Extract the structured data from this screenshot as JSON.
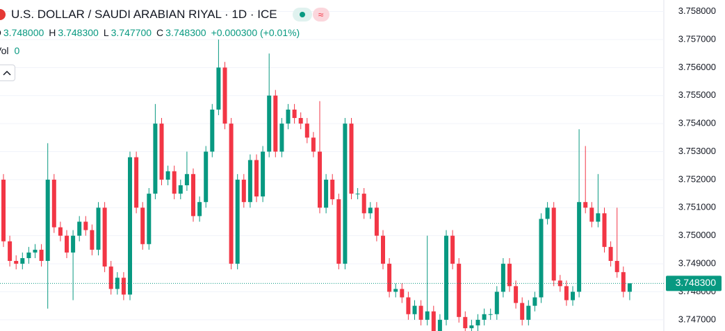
{
  "header": {
    "title": "U.S. DOLLAR / SAUDI ARABIAN RIYAL · 1D · ICE",
    "o_label": "O",
    "o_value": "3.748000",
    "h_label": "H",
    "h_value": "3.748300",
    "l_label": "L",
    "l_value": "3.747700",
    "c_label": "C",
    "c_value": "3.748300",
    "change": "+0.000300 (+0.01%)",
    "vol_label": "Vol",
    "vol_value": "0"
  },
  "chart_data": {
    "type": "candlestick",
    "up_color": "#089981",
    "down_color": "#f23645",
    "grid": true,
    "ylim": [
      3.7466,
      3.75841
    ],
    "yticks": [
      {
        "value": 3.758,
        "label": "3.758000"
      },
      {
        "value": 3.757,
        "label": "3.757000"
      },
      {
        "value": 3.756,
        "label": "3.756000"
      },
      {
        "value": 3.755,
        "label": "3.755000"
      },
      {
        "value": 3.754,
        "label": "3.754000"
      },
      {
        "value": 3.753,
        "label": "3.753000"
      },
      {
        "value": 3.752,
        "label": "3.752000"
      },
      {
        "value": 3.751,
        "label": "3.751000"
      },
      {
        "value": 3.75,
        "label": "3.750000"
      },
      {
        "value": 3.749,
        "label": "3.749000"
      },
      {
        "value": 3.748,
        "label": "3.748000"
      },
      {
        "value": 3.747,
        "label": "3.747000"
      }
    ],
    "last_price_label": "3.748300",
    "open": [
      3.752,
      3.7498,
      3.7491,
      3.749,
      3.7492,
      3.7494,
      3.7495,
      3.7491,
      3.752,
      3.7503,
      3.75,
      3.7494,
      3.75,
      3.7505,
      3.7502,
      3.7495,
      3.751,
      3.7489,
      3.7481,
      3.7485,
      3.7479,
      3.7528,
      3.751,
      3.7497,
      3.7515,
      3.754,
      3.752,
      3.7523,
      3.7515,
      3.7518,
      3.7522,
      3.7507,
      3.7512,
      3.753,
      3.7545,
      3.756,
      3.754,
      3.749,
      3.752,
      3.7512,
      3.7527,
      3.7514,
      3.753,
      3.755,
      3.753,
      3.754,
      3.7545,
      3.7542,
      3.754,
      3.7535,
      3.753,
      3.751,
      3.752,
      3.7513,
      3.749,
      3.754,
      3.7515,
      3.7515,
      3.7508,
      3.751,
      3.75,
      3.749,
      3.748,
      3.7481,
      3.7478,
      3.7472,
      3.7475,
      3.747,
      3.7473,
      3.7466,
      3.747,
      3.75,
      3.749,
      3.7471,
      3.7467,
      3.7468,
      3.747,
      3.7472,
      3.7472,
      3.748,
      3.749,
      3.7482,
      3.7476,
      3.747,
      3.7475,
      3.7478,
      3.7506,
      3.751,
      3.7484,
      3.7482,
      3.7477,
      3.748,
      3.7512,
      3.751,
      3.7505,
      3.7508,
      3.7496,
      3.7491,
      3.7487,
      3.748
    ],
    "high": [
      3.7522,
      3.75,
      3.7493,
      3.7494,
      3.7496,
      3.7497,
      3.7497,
      3.7533,
      3.7522,
      3.7505,
      3.7502,
      3.7502,
      3.7507,
      3.7507,
      3.7504,
      3.7512,
      3.7512,
      3.7491,
      3.7487,
      3.7487,
      3.753,
      3.753,
      3.7512,
      3.7517,
      3.7547,
      3.7542,
      3.7525,
      3.7525,
      3.752,
      3.753,
      3.7524,
      3.7514,
      3.7532,
      3.7547,
      3.757,
      3.7562,
      3.7542,
      3.7522,
      3.7522,
      3.7529,
      3.7529,
      3.7532,
      3.7565,
      3.7552,
      3.7542,
      3.7547,
      3.7547,
      3.7544,
      3.7542,
      3.7537,
      3.7548,
      3.7522,
      3.7522,
      3.7515,
      3.7542,
      3.7542,
      3.7517,
      3.7517,
      3.7512,
      3.7512,
      3.7502,
      3.7492,
      3.7483,
      3.7483,
      3.748,
      3.7477,
      3.7477,
      3.75,
      3.7475,
      3.7472,
      3.7502,
      3.7502,
      3.7492,
      3.7473,
      3.747,
      3.7472,
      3.7474,
      3.7474,
      3.7482,
      3.7492,
      3.7492,
      3.7484,
      3.7478,
      3.7477,
      3.748,
      3.7508,
      3.7512,
      3.7512,
      3.7486,
      3.7484,
      3.7482,
      3.7538,
      3.7532,
      3.7512,
      3.7522,
      3.751,
      3.7498,
      3.751,
      3.7489,
      3.7483
    ],
    "low": [
      3.7496,
      3.7489,
      3.7488,
      3.7488,
      3.749,
      3.7492,
      3.7489,
      3.7474,
      3.7501,
      3.7498,
      3.7492,
      3.7477,
      3.7498,
      3.75,
      3.7493,
      3.7493,
      3.7487,
      3.7479,
      3.7479,
      3.7477,
      3.7477,
      3.7508,
      3.7495,
      3.7495,
      3.7513,
      3.7518,
      3.7518,
      3.7513,
      3.7513,
      3.7516,
      3.7505,
      3.7505,
      3.751,
      3.7528,
      3.7543,
      3.7538,
      3.7488,
      3.7488,
      3.751,
      3.751,
      3.7512,
      3.7512,
      3.7528,
      3.7528,
      3.7528,
      3.7538,
      3.754,
      3.7538,
      3.7533,
      3.7528,
      3.7508,
      3.7508,
      3.7511,
      3.7488,
      3.7488,
      3.7513,
      3.7513,
      3.7506,
      3.7506,
      3.7498,
      3.7488,
      3.7478,
      3.7478,
      3.7476,
      3.747,
      3.747,
      3.7468,
      3.7468,
      3.7464,
      3.7464,
      3.7468,
      3.7488,
      3.7469,
      3.7465,
      3.7465,
      3.7466,
      3.7468,
      3.747,
      3.747,
      3.7478,
      3.748,
      3.7474,
      3.7468,
      3.7468,
      3.7473,
      3.7476,
      3.7504,
      3.7482,
      3.748,
      3.7475,
      3.7475,
      3.7478,
      3.7508,
      3.7503,
      3.7503,
      3.7494,
      3.7489,
      3.7485,
      3.7478,
      3.7477
    ],
    "close": [
      3.7498,
      3.7491,
      3.749,
      3.7492,
      3.7494,
      3.7495,
      3.7491,
      3.752,
      3.7503,
      3.75,
      3.7494,
      3.75,
      3.7505,
      3.7502,
      3.7495,
      3.751,
      3.7489,
      3.7481,
      3.7485,
      3.7479,
      3.7528,
      3.751,
      3.7497,
      3.7515,
      3.754,
      3.752,
      3.7523,
      3.7515,
      3.7518,
      3.7522,
      3.7507,
      3.7512,
      3.753,
      3.7545,
      3.756,
      3.754,
      3.749,
      3.752,
      3.7512,
      3.7527,
      3.7514,
      3.753,
      3.755,
      3.753,
      3.754,
      3.7545,
      3.7542,
      3.754,
      3.7535,
      3.753,
      3.751,
      3.752,
      3.7513,
      3.749,
      3.754,
      3.7515,
      3.7515,
      3.7508,
      3.751,
      3.75,
      3.749,
      3.748,
      3.7481,
      3.7478,
      3.7472,
      3.7475,
      3.747,
      3.7473,
      3.7466,
      3.747,
      3.75,
      3.749,
      3.7471,
      3.7467,
      3.7468,
      3.747,
      3.7472,
      3.7472,
      3.748,
      3.749,
      3.7482,
      3.7476,
      3.747,
      3.7475,
      3.7478,
      3.7506,
      3.751,
      3.7484,
      3.7482,
      3.7477,
      3.748,
      3.7512,
      3.751,
      3.7505,
      3.7508,
      3.7496,
      3.7491,
      3.7487,
      3.748,
      3.7483
    ]
  }
}
